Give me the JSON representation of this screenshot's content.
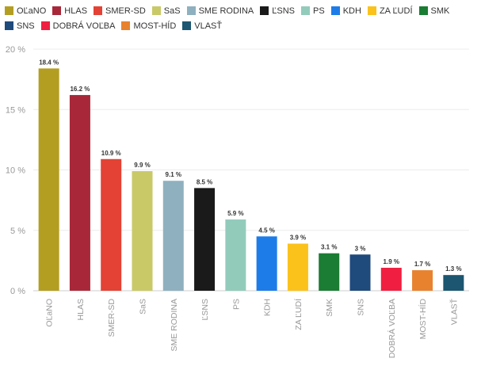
{
  "chart_data": {
    "type": "bar",
    "categories": [
      "OĽaNO",
      "HLAS",
      "SMER-SD",
      "SaS",
      "SME RODINA",
      "ĽSNS",
      "PS",
      "KDH",
      "ZA ĽUDÍ",
      "SMK",
      "SNS",
      "DOBRÁ VOĽBA",
      "MOST-HÍD",
      "VLASŤ"
    ],
    "values": [
      18.4,
      16.2,
      10.9,
      9.9,
      9.1,
      8.5,
      5.9,
      4.5,
      3.9,
      3.1,
      3,
      1.9,
      1.7,
      1.3
    ],
    "data_labels": [
      "18.4 %",
      "16.2 %",
      "10.9 %",
      "9.9 %",
      "9.1 %",
      "8.5 %",
      "5.9 %",
      "4.5 %",
      "3.9 %",
      "3.1 %",
      "3 %",
      "1.9 %",
      "1.7 %",
      "1.3 %"
    ],
    "colors": [
      "#b39e22",
      "#a8283a",
      "#e34235",
      "#c9c968",
      "#8fb0bf",
      "#1a1a1a",
      "#93cbbb",
      "#1e7ce8",
      "#fbc21c",
      "#1b7c33",
      "#1f4a7c",
      "#f01e40",
      "#e8822e",
      "#1c5670"
    ],
    "y_ticks": [
      0,
      5,
      10,
      15,
      20
    ],
    "y_tick_labels": [
      "0 %",
      "5 %",
      "10 %",
      "15 %",
      "20 %"
    ],
    "ylim": [
      0,
      20
    ],
    "title": "",
    "xlabel": "",
    "ylabel": "",
    "grid": true,
    "legend_position": "top"
  }
}
